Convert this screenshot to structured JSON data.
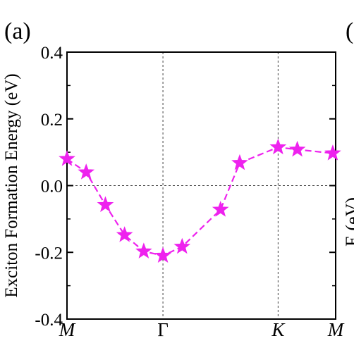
{
  "panel_label": "(a)",
  "next_panel_label_fragment": "(",
  "next_panel_ylabel_fragment": "E     (eV)",
  "chart_data": {
    "type": "line",
    "title": "",
    "xlabel": "",
    "ylabel": "Exciton Formation Energy (eV)",
    "ylim": [
      -0.4,
      0.4
    ],
    "yticks": [
      -0.4,
      -0.2,
      0.0,
      0.2,
      0.4
    ],
    "ytick_labels": [
      "-0.4",
      "-0.2",
      "0.0",
      "0.2",
      "0.4"
    ],
    "xlim": [
      0,
      14
    ],
    "xticks": [
      0,
      5,
      11,
      14
    ],
    "xtick_labels": [
      "M",
      "Γ",
      "K",
      "M"
    ],
    "xtick_italic": [
      true,
      false,
      true,
      true
    ],
    "vertical_reference_lines_at": [
      5,
      11
    ],
    "horizontal_reference_line_at": 0.0,
    "marker": "star",
    "line_style": "dashed",
    "color": "#ee22ee",
    "series": [
      {
        "x": [
          0,
          1,
          2,
          3,
          4,
          5,
          6,
          8,
          9,
          11,
          12,
          13.85
        ],
        "y": [
          0.08,
          0.04,
          -0.058,
          -0.148,
          -0.197,
          -0.21,
          -0.183,
          -0.072,
          0.068,
          0.115,
          0.108,
          0.097
        ]
      }
    ]
  }
}
